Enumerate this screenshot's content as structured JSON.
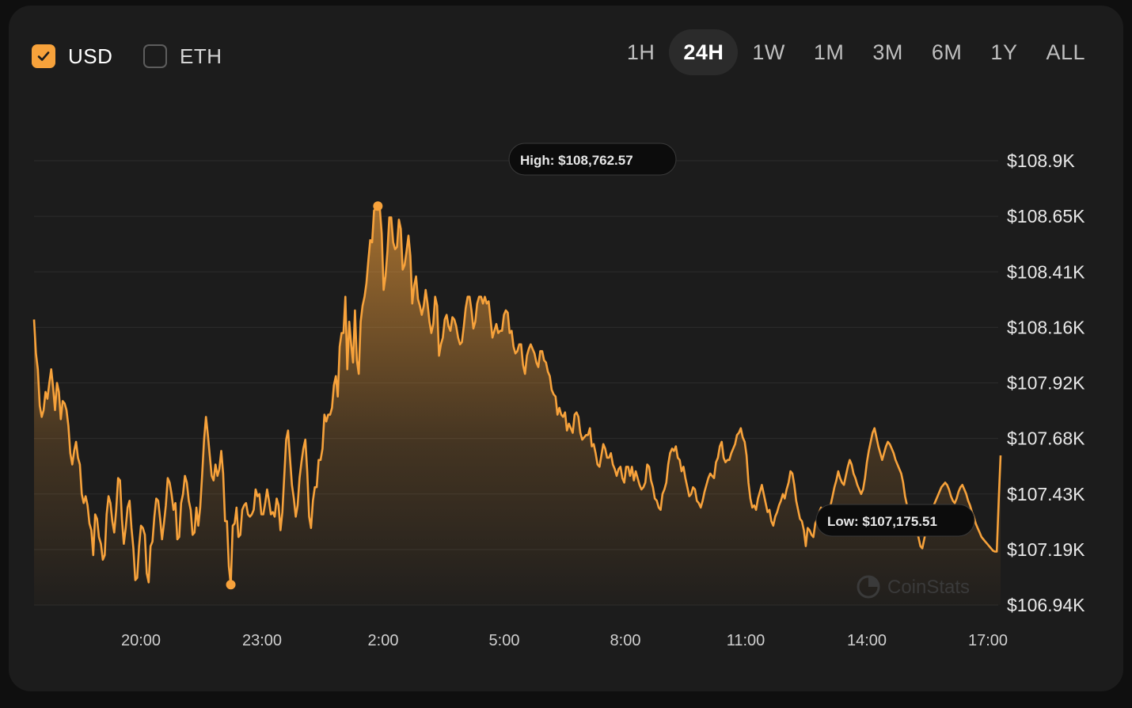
{
  "currency_toggles": [
    {
      "label": "USD",
      "checked": true
    },
    {
      "label": "ETH",
      "checked": false
    }
  ],
  "time_ranges": [
    "1H",
    "24H",
    "1W",
    "1M",
    "3M",
    "6M",
    "1Y",
    "ALL"
  ],
  "active_range": "24H",
  "colors": {
    "accent": "#f7a23b",
    "background": "#1c1c1c",
    "grid": "#2c2c2c"
  },
  "watermark": "CoinStats",
  "chart_data": {
    "type": "area",
    "y_ticks": [
      "$108.9K",
      "$108.65K",
      "$108.41K",
      "$108.16K",
      "$107.92K",
      "$107.68K",
      "$107.43K",
      "$107.19K",
      "$106.94K"
    ],
    "x_ticks": [
      "20:00",
      "23:00",
      "2:00",
      "5:00",
      "8:00",
      "11:00",
      "14:00",
      "17:00"
    ],
    "ylim": [
      106940,
      108900
    ],
    "grid": true,
    "high_label": "High: $108,762.57",
    "low_label": "Low: $107,175.51",
    "series": [
      {
        "values": [
          108200,
          108050,
          107980,
          107820,
          107770,
          107800,
          107880,
          107850,
          107920,
          107980,
          107900,
          107800,
          107920,
          107880,
          107760,
          107840,
          107830,
          107800,
          107730,
          107610,
          107560,
          107620,
          107660,
          107590,
          107560,
          107430,
          107390,
          107420,
          107380,
          107300,
          107270,
          107160,
          107340,
          107320,
          107240,
          107210,
          107140,
          107160,
          107340,
          107420,
          107390,
          107310,
          107260,
          107360,
          107500,
          107490,
          107320,
          107210,
          107280,
          107370,
          107400,
          107280,
          107190,
          107050,
          107060,
          107200,
          107290,
          107280,
          107250,
          107080,
          107040,
          107200,
          107220,
          107330,
          107410,
          107400,
          107320,
          107230,
          107300,
          107380,
          107500,
          107480,
          107430,
          107360,
          107390,
          107230,
          107240,
          107390,
          107430,
          107510,
          107480,
          107400,
          107360,
          107250,
          107260,
          107370,
          107290,
          107370,
          107510,
          107670,
          107770,
          107690,
          107600,
          107510,
          107490,
          107560,
          107510,
          107540,
          107620,
          107520,
          107310,
          107310,
          107110,
          107030,
          107290,
          107300,
          107370,
          107240,
          107250,
          107360,
          107380,
          107390,
          107340,
          107330,
          107340,
          107360,
          107450,
          107420,
          107430,
          107340,
          107340,
          107390,
          107450,
          107400,
          107340,
          107350,
          107330,
          107410,
          107380,
          107270,
          107350,
          107510,
          107670,
          107710,
          107590,
          107470,
          107410,
          107330,
          107380,
          107500,
          107570,
          107630,
          107670,
          107530,
          107330,
          107280,
          107400,
          107460,
          107460,
          107580,
          107580,
          107630,
          107780,
          107750,
          107780,
          107780,
          107810,
          107910,
          107950,
          107860,
          108080,
          108140,
          108140,
          108300,
          107980,
          108190,
          108090,
          108010,
          108240,
          108020,
          107960,
          108190,
          108260,
          108300,
          108360,
          108460,
          108550,
          108540,
          108680,
          108690,
          108700,
          108690,
          108580,
          108330,
          108390,
          108500,
          108650,
          108650,
          108540,
          108510,
          108520,
          108640,
          108600,
          108420,
          108440,
          108500,
          108570,
          108480,
          108270,
          108350,
          108390,
          108290,
          108260,
          108220,
          108260,
          108330,
          108270,
          108190,
          108140,
          108180,
          108300,
          108260,
          108040,
          108090,
          108120,
          108200,
          108220,
          108170,
          108150,
          108210,
          108200,
          108170,
          108120,
          108090,
          108100,
          108170,
          108250,
          108300,
          108300,
          108240,
          108160,
          108190,
          108270,
          108300,
          108300,
          108270,
          108300,
          108270,
          108280,
          108200,
          108120,
          108150,
          108180,
          108140,
          108150,
          108150,
          108220,
          108240,
          108230,
          108140,
          108150,
          108080,
          108050,
          108060,
          108090,
          108090,
          108000,
          107960,
          108040,
          108070,
          108090,
          108070,
          108050,
          108010,
          107990,
          108060,
          108060,
          108020,
          108010,
          107970,
          107950,
          107890,
          107870,
          107860,
          107780,
          107810,
          107780,
          107770,
          107790,
          107710,
          107740,
          107720,
          107700,
          107780,
          107790,
          107770,
          107700,
          107670,
          107680,
          107690,
          107690,
          107720,
          107640,
          107650,
          107610,
          107560,
          107550,
          107600,
          107650,
          107630,
          107590,
          107590,
          107610,
          107560,
          107540,
          107510,
          107540,
          107550,
          107500,
          107480,
          107550,
          107550,
          107510,
          107550,
          107490,
          107530,
          107500,
          107470,
          107450,
          107460,
          107480,
          107560,
          107550,
          107490,
          107460,
          107410,
          107400,
          107370,
          107360,
          107430,
          107450,
          107480,
          107560,
          107610,
          107630,
          107620,
          107640,
          107590,
          107580,
          107530,
          107550,
          107500,
          107460,
          107420,
          107430,
          107460,
          107450,
          107400,
          107390,
          107370,
          107400,
          107440,
          107470,
          107500,
          107520,
          107510,
          107500,
          107570,
          107590,
          107640,
          107660,
          107590,
          107570,
          107580,
          107580,
          107610,
          107630,
          107650,
          107690,
          107700,
          107720,
          107680,
          107660,
          107600,
          107480,
          107410,
          107370,
          107380,
          107360,
          107410,
          107440,
          107470,
          107430,
          107390,
          107350,
          107360,
          107310,
          107290,
          107330,
          107350,
          107380,
          107400,
          107430,
          107410,
          107450,
          107480,
          107530,
          107520,
          107470,
          107400,
          107360,
          107320,
          107310,
          107270,
          107200,
          107280,
          107270,
          107250,
          107240,
          107300,
          107320,
          107350,
          107370,
          107330,
          107290,
          107310,
          107300,
          107380,
          107420,
          107460,
          107490,
          107530,
          107500,
          107480,
          107470,
          107510,
          107550,
          107580,
          107560,
          107520,
          107500,
          107470,
          107450,
          107430,
          107450,
          107500,
          107570,
          107620,
          107660,
          107700,
          107720,
          107680,
          107640,
          107610,
          107580,
          107610,
          107640,
          107660,
          107650,
          107630,
          107610,
          107580,
          107560,
          107540,
          107520,
          107480,
          107420,
          107380,
          107350,
          107330,
          107310,
          107290,
          107260,
          107240,
          107200,
          107190,
          107230,
          107270,
          107300,
          107320,
          107350,
          107380,
          107400,
          107420,
          107440,
          107460,
          107470,
          107480,
          107470,
          107450,
          107420,
          107400,
          107390,
          107410,
          107440,
          107460,
          107470,
          107450,
          107430,
          107400,
          107380,
          107350,
          107330,
          107300,
          107280,
          107260,
          107240,
          107230,
          107220,
          107210,
          107200,
          107190,
          107180,
          107176,
          107176,
          107400,
          107600
        ]
      }
    ]
  }
}
